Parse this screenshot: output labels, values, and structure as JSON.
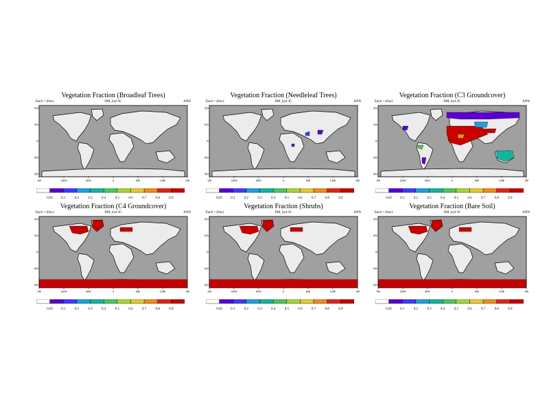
{
  "colorbar": {
    "colors": [
      "#ffffff",
      "#5a00d2",
      "#3c3cff",
      "#1ea0dc",
      "#14b4a0",
      "#4cc85a",
      "#aad23c",
      "#e6c832",
      "#f08c1e",
      "#dc2814",
      "#c80000"
    ],
    "labels": [
      "0.05",
      "0.1",
      "0.2",
      "0.3",
      "0.4",
      "0.5",
      "0.6",
      "0.7",
      "0.8",
      "0.9"
    ]
  },
  "map": {
    "ocean_color": "#a0a0a0",
    "land_color": "#ececec",
    "coast_color": "#000000",
    "lon_ticks": [
      "180",
      "120W",
      "60W",
      "0",
      "60E",
      "120E",
      "180"
    ],
    "lat_ticks": [
      "80N",
      "40N",
      "0",
      "40S",
      "80S"
    ]
  },
  "panels": [
    {
      "title": "Vegetation Fraction (Broadleaf Trees)",
      "left": "Each = (frac)",
      "center": "DM_hyd 3C",
      "right": "ANN",
      "pattern": "broadleaf"
    },
    {
      "title": "Vegetation Fraction (Needleleaf Trees)",
      "left": "Each = (frac)",
      "center": "DM_hyd 3C",
      "right": "ANN",
      "pattern": "needleleaf"
    },
    {
      "title": "Vegetation Fraction (C3 Groundcover)",
      "left": "Each = (frac)",
      "center": "DM_hyd 3C",
      "right": "ANN",
      "pattern": "c3"
    },
    {
      "title": "Vegetation Fraction (C4 Groundcover)",
      "left": "Each = (frac)",
      "center": "DM_hyd 3C",
      "right": "ANN",
      "pattern": "soil"
    },
    {
      "title": "Vegetation Fraction (Shrubs)",
      "left": "Each = (frac)",
      "center": "DM_hyd 3C",
      "right": "ANN",
      "pattern": "soil"
    },
    {
      "title": "Vegetation Fraction (Bare Soil)",
      "left": "Each = (frac)",
      "center": "DM_hyd 3C",
      "right": "ANN",
      "pattern": "soil"
    }
  ]
}
